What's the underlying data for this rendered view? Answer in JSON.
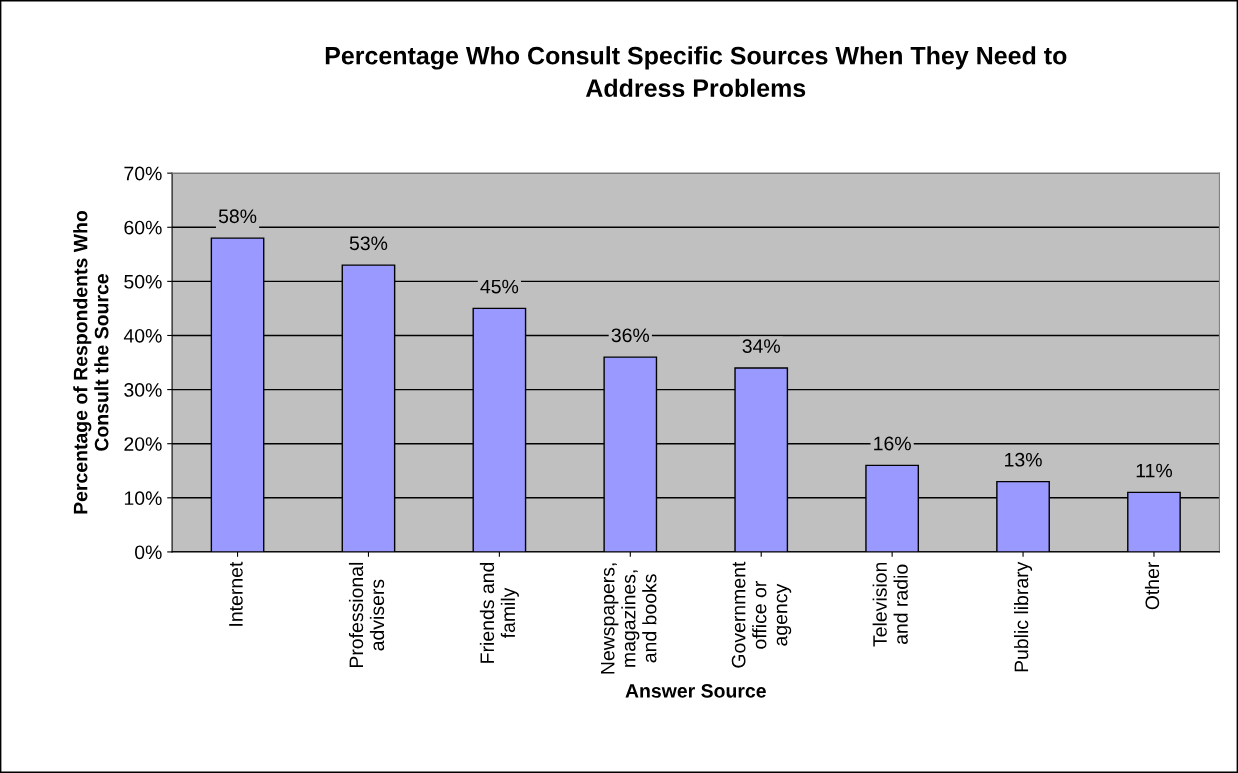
{
  "chart_data": {
    "type": "bar",
    "title": "Percentage Who Consult Specific Sources When They Need to\nAddress Problems",
    "xlabel": "Answer Source",
    "ylabel": "Percentage of Respondents Who\nConsult the Source",
    "categories": [
      "Internet",
      "Professional\nadvisers",
      "Friends and\nfamily",
      "Newspapers,\nmagazines,\nand books",
      "Government\noffice or\nagency",
      "Television\nand radio",
      "Public library",
      "Other"
    ],
    "values": [
      58,
      53,
      45,
      36,
      34,
      16,
      13,
      11
    ],
    "value_labels": [
      "58%",
      "53%",
      "45%",
      "36%",
      "34%",
      "16%",
      "13%",
      "11%"
    ],
    "color": "#9999ff",
    "ylim": [
      0,
      70
    ],
    "yticks": [
      {
        "value": 0,
        "label": "0%"
      },
      {
        "value": 10,
        "label": "10%"
      },
      {
        "value": 20,
        "label": "20%"
      },
      {
        "value": 30,
        "label": "30%"
      },
      {
        "value": 40,
        "label": "40%"
      },
      {
        "value": 50,
        "label": "50%"
      },
      {
        "value": 60,
        "label": "60%"
      },
      {
        "value": 70,
        "label": "70%"
      }
    ],
    "grid": "y",
    "legend": false
  }
}
